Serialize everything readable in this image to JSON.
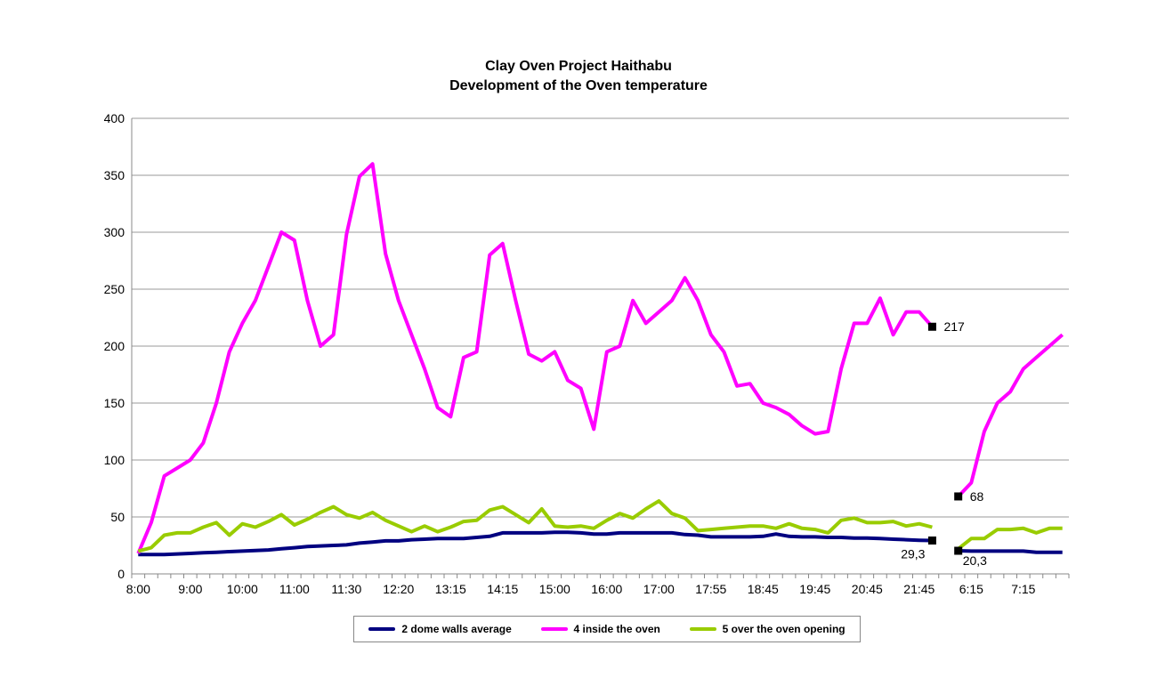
{
  "chart_data": {
    "type": "line",
    "title": "Clay Oven Project Haithabu",
    "subtitle": "Development of the Oven temperature",
    "xlabel": "",
    "ylabel": "",
    "ylim": [
      0,
      400
    ],
    "yticks": [
      "0",
      "50",
      "100",
      "150",
      "200",
      "250",
      "300",
      "350",
      "400"
    ],
    "grid": true,
    "legend_position": "bottom",
    "x_tick_labels": [
      {
        "index": 0,
        "label": "8:00"
      },
      {
        "index": 4,
        "label": "9:00"
      },
      {
        "index": 8,
        "label": "10:00"
      },
      {
        "index": 12,
        "label": "11:00"
      },
      {
        "index": 16,
        "label": "11:30"
      },
      {
        "index": 20,
        "label": "12:20"
      },
      {
        "index": 24,
        "label": "13:15"
      },
      {
        "index": 28,
        "label": "14:15"
      },
      {
        "index": 32,
        "label": "15:00"
      },
      {
        "index": 36,
        "label": "16:00"
      },
      {
        "index": 40,
        "label": "17:00"
      },
      {
        "index": 44,
        "label": "17:55"
      },
      {
        "index": 48,
        "label": "18:45"
      },
      {
        "index": 52,
        "label": "19:45"
      },
      {
        "index": 56,
        "label": "20:45"
      },
      {
        "index": 60,
        "label": "21:45"
      },
      {
        "index": 64,
        "label": "6:15"
      },
      {
        "index": 68,
        "label": "7:15"
      }
    ],
    "n_categories": 72,
    "series": [
      {
        "name": "2 dome walls average",
        "color": "#000080",
        "values": [
          17,
          17,
          17,
          17.5,
          18,
          18.5,
          19,
          19.5,
          20,
          20.5,
          21,
          22,
          23,
          24,
          24.5,
          25,
          25.5,
          27,
          28,
          29,
          29,
          30,
          30.5,
          31,
          31,
          31,
          32,
          33,
          36,
          36,
          36,
          36,
          36.5,
          36.5,
          36,
          35,
          35,
          36,
          36,
          36,
          36,
          36,
          34.5,
          34,
          32.5,
          32.5,
          32.5,
          32.5,
          33,
          35,
          33,
          32.5,
          32.5,
          32,
          32,
          31.5,
          31.5,
          31,
          30.5,
          30,
          29.5,
          29.3,
          null,
          20.3,
          20,
          20,
          20,
          20,
          20,
          19,
          19,
          19
        ]
      },
      {
        "name": "4 inside the oven",
        "color": "#ff00ff",
        "values": [
          18,
          45,
          86,
          93,
          100,
          115,
          150,
          195,
          220,
          240,
          270,
          300,
          293,
          240,
          200,
          210,
          298,
          349,
          360,
          281,
          240,
          210,
          180,
          146,
          138,
          190,
          195,
          280,
          290,
          240,
          193,
          187,
          195,
          170,
          163,
          127,
          195,
          200,
          240,
          220,
          230,
          240,
          260,
          240,
          210,
          195,
          165,
          167,
          150,
          146,
          140,
          130,
          123,
          125,
          180,
          220,
          220,
          242,
          210,
          230,
          230,
          217,
          null,
          68,
          80,
          125,
          150,
          160,
          180,
          190,
          200,
          210
        ]
      },
      {
        "name": "5 over the oven opening",
        "color": "#99cc00",
        "values": [
          20,
          23,
          34,
          36,
          36,
          41,
          45,
          34,
          44,
          41,
          46,
          52,
          43,
          48,
          54,
          59,
          52,
          49,
          54,
          47,
          42,
          37,
          42,
          37,
          41,
          46,
          47,
          56,
          59,
          52,
          45,
          57,
          42,
          41,
          42,
          40,
          47,
          53,
          49,
          57,
          64,
          53,
          49,
          38,
          39,
          40,
          41,
          42,
          42,
          40,
          44,
          40,
          39,
          36,
          47,
          49,
          45,
          45,
          46,
          42,
          44,
          41,
          null,
          22,
          31,
          31,
          39,
          39,
          40,
          36,
          40,
          40
        ]
      }
    ],
    "data_labels": [
      {
        "series": 1,
        "index": 61,
        "text": "217",
        "side": "right"
      },
      {
        "series": 1,
        "index": 63,
        "text": "68",
        "side": "right"
      },
      {
        "series": 0,
        "index": 61,
        "text": "29,3",
        "side": "below-left"
      },
      {
        "series": 0,
        "index": 63,
        "text": "20,3",
        "side": "below-right"
      }
    ]
  }
}
